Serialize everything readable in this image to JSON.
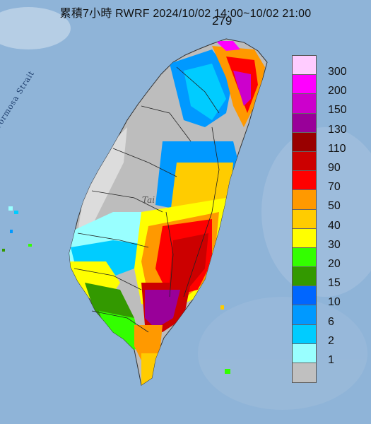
{
  "title": "累積7小時 RWRF 2024/10/02 14:00~10/02 21:00",
  "max_value": "279",
  "labels": {
    "strait": "Formosa Strait",
    "place": "Tai"
  },
  "legend": {
    "items": [
      {
        "label": "300",
        "color": "#ffccff"
      },
      {
        "label": "200",
        "color": "#ff00ff"
      },
      {
        "label": "150",
        "color": "#cc00cc"
      },
      {
        "label": "130",
        "color": "#990099"
      },
      {
        "label": "110",
        "color": "#990000"
      },
      {
        "label": "90",
        "color": "#cc0000"
      },
      {
        "label": "70",
        "color": "#ff0000"
      },
      {
        "label": "50",
        "color": "#ff9900"
      },
      {
        "label": "40",
        "color": "#ffcc00"
      },
      {
        "label": "30",
        "color": "#ffff00"
      },
      {
        "label": "20",
        "color": "#33ff00"
      },
      {
        "label": "15",
        "color": "#339900"
      },
      {
        "label": "10",
        "color": "#0066ff"
      },
      {
        "label": "6",
        "color": "#0099ff"
      },
      {
        "label": "2",
        "color": "#00ccff"
      },
      {
        "label": "1",
        "color": "#99ffff"
      },
      {
        "label": "",
        "color": "#c0c0c0"
      }
    ]
  },
  "rain_colors": {
    "bg": "#8fb4d8",
    "gray": "#bdbdbd",
    "light_gray": "#dcdcdc"
  }
}
